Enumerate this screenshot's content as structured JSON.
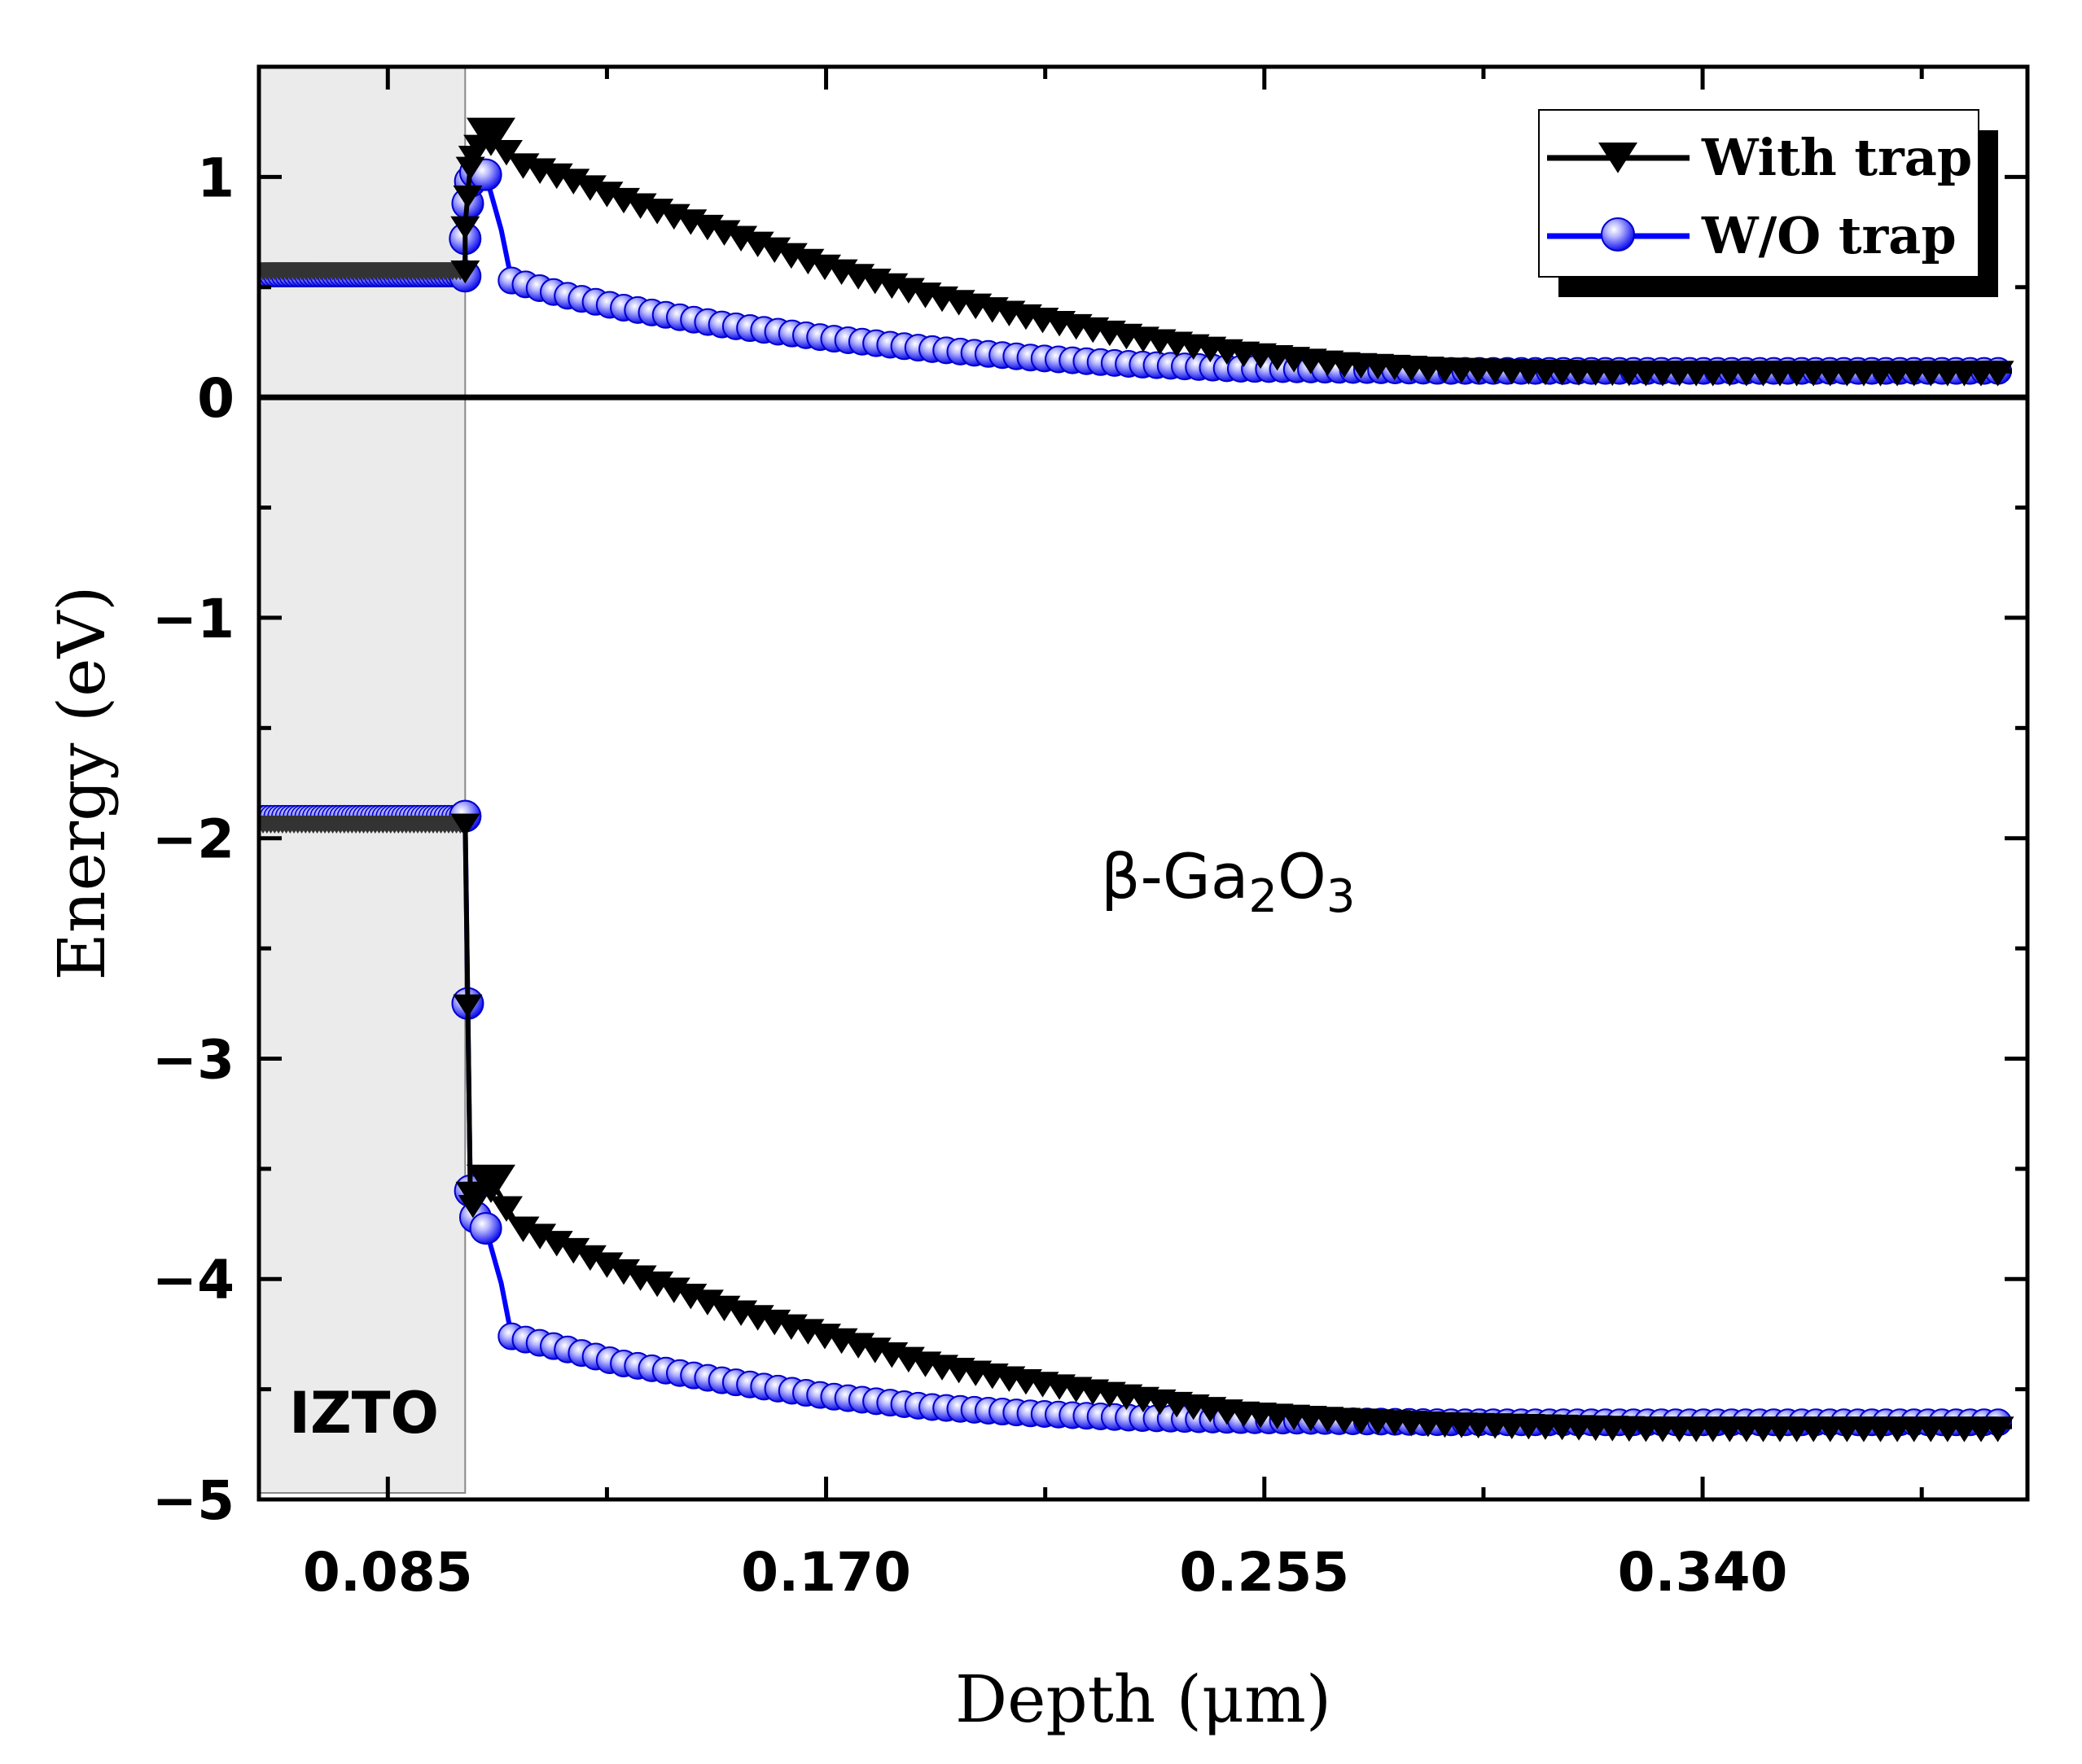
{
  "chart_data": {
    "type": "line",
    "title": "",
    "xlabel": "Depth (μm)",
    "ylabel": "Energy (eV)",
    "xlim": [
      0.06,
      0.403
    ],
    "ylim": [
      -5,
      1.5
    ],
    "x_ticks": [
      0.085,
      0.17,
      0.255,
      0.34
    ],
    "x_tick_labels": [
      "0.085",
      "0.170",
      "0.255",
      "0.340"
    ],
    "y_ticks": [
      1,
      0,
      -1,
      -2,
      -3,
      -4,
      -5
    ],
    "y_tick_labels": [
      "1",
      "0",
      "−1",
      "−2",
      "−3",
      "−4",
      "−5"
    ],
    "legend_position": "top-right",
    "annotations": {
      "region_label": "IZTO",
      "material": {
        "base": "β-Ga",
        "sub1": "2",
        "mid": "O",
        "sub2": "3"
      }
    },
    "izto_region": {
      "x_start": 0.06,
      "x_end": 0.1
    },
    "fermi_level": 0,
    "series": [
      {
        "name": "With trap",
        "color": "#000000",
        "marker": "triangle-down",
        "conduction_band": {
          "x": [
            0.06,
            0.1,
            0.1,
            0.1005,
            0.101,
            0.1015,
            0.1025,
            0.105,
            0.11,
            0.12,
            0.13,
            0.15,
            0.17,
            0.19,
            0.21,
            0.23,
            0.25,
            0.27,
            0.29,
            0.31,
            0.33,
            0.35,
            0.37,
            0.39,
            0.4
          ],
          "values": [
            0.58,
            0.58,
            0.78,
            0.92,
            1.05,
            1.1,
            1.15,
            1.2,
            1.07,
            1.0,
            0.91,
            0.76,
            0.6,
            0.47,
            0.37,
            0.28,
            0.21,
            0.16,
            0.135,
            0.125,
            0.12,
            0.12,
            0.12,
            0.12,
            0.12
          ]
        },
        "valence_band": {
          "x": [
            0.06,
            0.1,
            0.1,
            0.1005,
            0.101,
            0.1015,
            0.1025,
            0.105,
            0.11,
            0.12,
            0.13,
            0.15,
            0.17,
            0.19,
            0.21,
            0.23,
            0.25,
            0.27,
            0.29,
            0.31,
            0.33,
            0.35,
            0.37,
            0.39,
            0.4
          ],
          "values": [
            -1.93,
            -1.93,
            -1.93,
            -2.75,
            -3.6,
            -3.66,
            -3.6,
            -3.55,
            -3.75,
            -3.85,
            -3.95,
            -4.12,
            -4.25,
            -4.38,
            -4.46,
            -4.53,
            -4.6,
            -4.63,
            -4.65,
            -4.66,
            -4.67,
            -4.67,
            -4.67,
            -4.67,
            -4.67
          ]
        }
      },
      {
        "name": "W/O trap",
        "color": "#0000ff",
        "marker": "circle",
        "conduction_band": {
          "x": [
            0.06,
            0.1,
            0.1,
            0.1005,
            0.101,
            0.102,
            0.104,
            0.107,
            0.109,
            0.12,
            0.13,
            0.15,
            0.17,
            0.19,
            0.21,
            0.23,
            0.25,
            0.27,
            0.29,
            0.31,
            0.33,
            0.35,
            0.37,
            0.39,
            0.4
          ],
          "values": [
            0.55,
            0.55,
            0.72,
            0.88,
            0.98,
            1.02,
            1.01,
            0.76,
            0.53,
            0.46,
            0.41,
            0.33,
            0.27,
            0.22,
            0.18,
            0.15,
            0.13,
            0.125,
            0.12,
            0.12,
            0.12,
            0.12,
            0.12,
            0.12,
            0.12
          ]
        },
        "valence_band": {
          "x": [
            0.06,
            0.1,
            0.1,
            0.1005,
            0.101,
            0.102,
            0.104,
            0.107,
            0.109,
            0.12,
            0.13,
            0.15,
            0.17,
            0.19,
            0.21,
            0.23,
            0.25,
            0.27,
            0.29,
            0.31,
            0.33,
            0.35,
            0.37,
            0.39,
            0.4
          ],
          "values": [
            -1.9,
            -1.9,
            -1.9,
            -2.75,
            -3.6,
            -3.72,
            -3.77,
            -4.02,
            -4.26,
            -4.32,
            -4.38,
            -4.46,
            -4.53,
            -4.58,
            -4.61,
            -4.63,
            -4.64,
            -4.645,
            -4.65,
            -4.65,
            -4.65,
            -4.65,
            -4.65,
            -4.65,
            -4.65
          ]
        }
      }
    ]
  }
}
